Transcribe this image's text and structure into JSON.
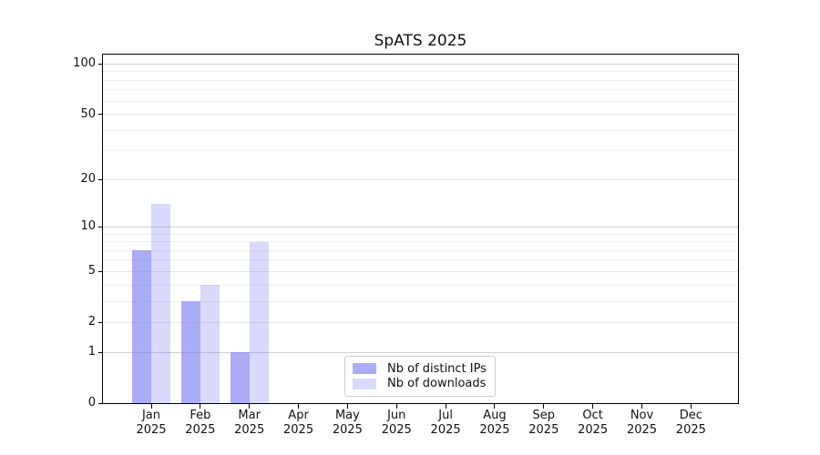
{
  "chart_data": {
    "type": "bar",
    "title": "SpATS 2025",
    "x_year_label": "2025",
    "categories": [
      "Jan",
      "Feb",
      "Mar",
      "Apr",
      "May",
      "Jun",
      "Jul",
      "Aug",
      "Sep",
      "Oct",
      "Nov",
      "Dec"
    ],
    "series": [
      {
        "name": "Nb of distinct IPs",
        "color": "rgba(120,120,240,0.62)",
        "solid_hex": "#a9a9f7",
        "values": [
          7,
          3,
          1,
          0,
          0,
          0,
          0,
          0,
          0,
          0,
          0,
          0
        ]
      },
      {
        "name": "Nb of downloads",
        "color": "rgba(120,120,240,0.28)",
        "solid_hex": "#d9d9fa",
        "values": [
          14,
          4,
          8,
          0,
          0,
          0,
          0,
          0,
          0,
          0,
          0,
          0
        ]
      }
    ],
    "xlabel": "",
    "ylabel": "",
    "y_scale": "log1p",
    "y_ticks": [
      0,
      1,
      2,
      5,
      10,
      20,
      50,
      100
    ],
    "y_decade_gridlines": [
      1,
      10,
      100
    ],
    "y_minor_gridlines": [
      3,
      4,
      6,
      7,
      8,
      9,
      30,
      40,
      60,
      70,
      80,
      90
    ],
    "ylim": [
      0,
      114
    ],
    "grid": true,
    "legend_position": "lower center",
    "palette": {
      "grid_decade": "#cfcfcf",
      "grid_minor": "#efefef",
      "axis": "#000000",
      "legend_border": "#cccccc"
    }
  }
}
